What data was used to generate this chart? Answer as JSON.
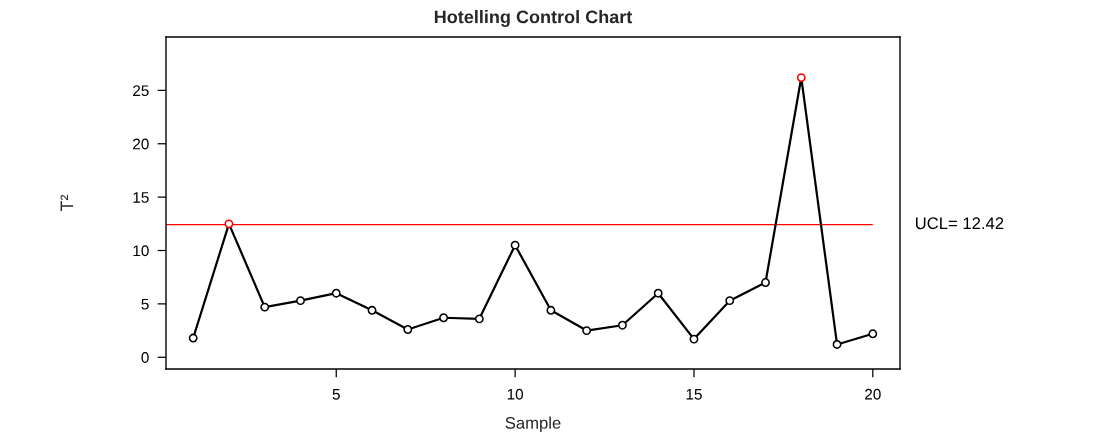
{
  "chart_data": {
    "type": "line",
    "title": "Hotelling Control Chart",
    "xlabel": "Sample",
    "ylabel": "T²",
    "x": [
      1,
      2,
      3,
      4,
      5,
      6,
      7,
      8,
      9,
      10,
      11,
      12,
      13,
      14,
      15,
      16,
      17,
      18,
      19,
      20
    ],
    "series": [
      {
        "color": "#000000",
        "values": [
          1.8,
          12.5,
          4.7,
          5.3,
          6.0,
          4.4,
          2.6,
          3.7,
          3.6,
          10.5,
          4.4,
          2.5,
          3.0,
          6.0,
          1.7,
          5.3,
          7.0,
          26.2,
          1.2,
          2.2
        ],
        "colors": [
          "#000000",
          "#ff0000",
          "#000000",
          "#000000",
          "#000000",
          "#000000",
          "#000000",
          "#000000",
          "#000000",
          "#000000",
          "#000000",
          "#000000",
          "#000000",
          "#000000",
          "#000000",
          "#000000",
          "#000000",
          "#ff0000",
          "#000000",
          "#000000"
        ]
      }
    ],
    "xlim": [
      0.24,
      20.76
    ],
    "ylim": [
      -1.1,
      30.0
    ],
    "xticks": [
      5,
      10,
      15,
      20
    ],
    "yticks": [
      0,
      5,
      10,
      15,
      20,
      25
    ],
    "ref_lines": [
      {
        "axis": "y",
        "value": 12.42,
        "label": "UCL= 12.42",
        "color": "#ff0000"
      }
    ],
    "grid": false,
    "legend": false,
    "marker": "circle",
    "line_style": "solid"
  }
}
